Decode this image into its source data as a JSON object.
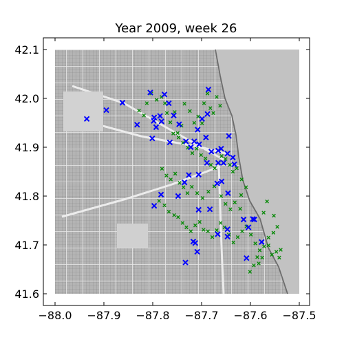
{
  "chart_data": {
    "type": "scatter",
    "title": "Year 2009, week 26",
    "xlabel": "",
    "ylabel": "",
    "xlim": [
      -88.0,
      -87.5
    ],
    "ylim": [
      41.6,
      42.1
    ],
    "xticks": [
      -88.0,
      -87.9,
      -87.8,
      -87.7,
      -87.6,
      -87.5
    ],
    "xtick_labels": [
      "−88.0",
      "−87.9",
      "−87.8",
      "−87.7",
      "−87.6",
      "−87.5"
    ],
    "yticks": [
      41.6,
      41.7,
      41.8,
      41.9,
      42.0,
      42.1
    ],
    "ytick_labels": [
      "41.6",
      "41.7",
      "41.8",
      "41.9",
      "42.0",
      "42.1"
    ],
    "grid": false,
    "legend": "none",
    "background": "grayscale street map of Chicago with Lake Michigan on the right",
    "series": [
      {
        "color": "#0000ff",
        "marker": "x",
        "x": [
          -87.935,
          -87.895,
          -87.862,
          -87.832,
          -87.805,
          -87.798,
          -87.793,
          -87.801,
          -87.797,
          -87.785,
          -87.776,
          -87.782,
          -87.765,
          -87.757,
          -87.767,
          -87.746,
          -87.732,
          -87.715,
          -87.722,
          -87.708,
          -87.705,
          -87.691,
          -87.688,
          -87.686,
          -87.699,
          -87.68,
          -87.666,
          -87.647,
          -87.644,
          -87.66,
          -87.655,
          -87.636,
          -87.666,
          -87.633,
          -87.659,
          -87.646,
          -87.668,
          -87.689,
          -87.706,
          -87.726,
          -87.735,
          -87.748,
          -87.783,
          -87.797,
          -87.683,
          -87.706,
          -87.647,
          -87.647,
          -87.667,
          -87.614,
          -87.595,
          -87.604,
          -87.592,
          -87.608,
          -87.577,
          -87.709,
          -87.713,
          -87.733,
          -87.717
        ],
        "y": [
          41.958,
          41.976,
          41.991,
          41.946,
          42.012,
          41.954,
          41.941,
          41.918,
          41.961,
          41.964,
          42.008,
          41.953,
          41.91,
          41.965,
          41.99,
          41.947,
          41.912,
          41.912,
          41.9,
          41.936,
          41.906,
          41.92,
          41.968,
          42.018,
          41.958,
          41.891,
          41.893,
          41.887,
          41.923,
          41.897,
          41.868,
          41.879,
          41.868,
          41.865,
          41.83,
          41.806,
          41.826,
          41.868,
          41.844,
          41.843,
          41.828,
          41.8,
          41.803,
          41.78,
          41.773,
          41.772,
          41.732,
          41.717,
          41.722,
          41.752,
          41.753,
          41.736,
          41.752,
          41.673,
          41.706,
          41.686,
          41.704,
          41.664,
          41.707
        ]
      },
      {
        "color": "#0a8a0a",
        "marker": "x",
        "x": [
          -87.828,
          -87.818,
          -87.812,
          -87.803,
          -87.792,
          -87.782,
          -87.775,
          -87.771,
          -87.764,
          -87.755,
          -87.749,
          -87.741,
          -87.735,
          -87.724,
          -87.715,
          -87.707,
          -87.699,
          -87.695,
          -87.688,
          -87.682,
          -87.676,
          -87.669,
          -87.662,
          -87.758,
          -87.747,
          -87.738,
          -87.728,
          -87.719,
          -87.71,
          -87.701,
          -87.692,
          -87.681,
          -87.673,
          -87.665,
          -87.659,
          -87.651,
          -87.642,
          -87.636,
          -87.628,
          -87.618,
          -87.781,
          -87.772,
          -87.763,
          -87.754,
          -87.745,
          -87.737,
          -87.729,
          -87.72,
          -87.709,
          -87.698,
          -87.686,
          -87.674,
          -87.66,
          -87.651,
          -87.641,
          -87.632,
          -87.621,
          -87.787,
          -87.776,
          -87.767,
          -87.756,
          -87.748,
          -87.739,
          -87.731,
          -87.722,
          -87.713,
          -87.704,
          -87.696,
          -87.687,
          -87.678,
          -87.669,
          -87.661,
          -87.653,
          -87.644,
          -87.635,
          -87.626,
          -87.617,
          -87.608,
          -87.599,
          -87.59,
          -87.581,
          -87.572,
          -87.563,
          -87.553,
          -87.545,
          -87.538,
          -87.583,
          -87.576,
          -87.563,
          -87.556,
          -87.547,
          -87.541,
          -87.593,
          -87.601,
          -87.586,
          -87.619,
          -87.609,
          -87.573,
          -87.566,
          -87.552
        ],
        "y": [
          41.975,
          41.965,
          41.99,
          42.01,
          41.997,
          42.003,
          41.99,
          41.97,
          41.951,
          41.972,
          41.929,
          41.944,
          41.989,
          41.974,
          41.95,
          41.963,
          41.949,
          41.99,
          42.01,
          41.98,
          41.97,
          42.003,
          41.985,
          41.928,
          41.92,
          41.909,
          41.899,
          41.888,
          41.897,
          41.884,
          41.877,
          41.864,
          41.857,
          41.868,
          41.882,
          41.876,
          41.864,
          41.85,
          41.857,
          41.834,
          41.856,
          41.842,
          41.834,
          41.846,
          41.827,
          41.818,
          41.806,
          41.819,
          41.806,
          41.796,
          41.809,
          41.82,
          41.8,
          41.784,
          41.773,
          41.787,
          41.774,
          41.79,
          41.781,
          41.768,
          41.761,
          41.757,
          41.745,
          41.736,
          41.728,
          41.74,
          41.747,
          41.731,
          41.728,
          41.716,
          41.73,
          41.745,
          41.736,
          41.721,
          41.705,
          41.716,
          41.728,
          41.738,
          41.721,
          41.703,
          41.689,
          41.697,
          41.715,
          41.725,
          41.737,
          41.69,
          41.662,
          41.674,
          41.699,
          41.68,
          41.686,
          41.674,
          41.658,
          41.645,
          41.675,
          41.802,
          41.818,
          41.766,
          41.789,
          41.76
        ]
      }
    ]
  }
}
